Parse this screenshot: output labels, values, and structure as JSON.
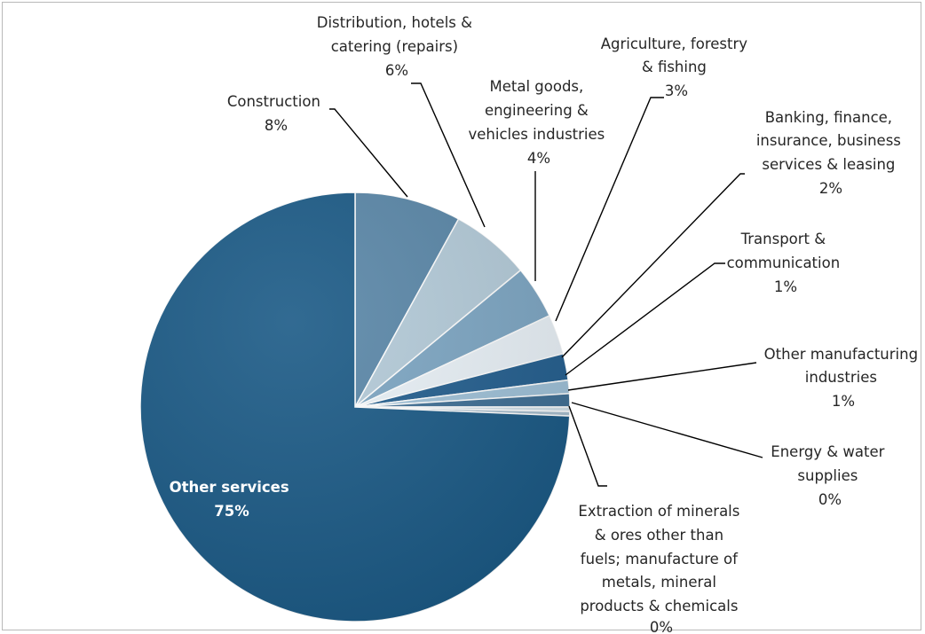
{
  "chart_data": {
    "type": "pie",
    "start_angle_deg": 0,
    "direction": "clockwise",
    "slices": [
      {
        "name": "Construction",
        "value": 8,
        "label": "8%",
        "color": "#5a87a8"
      },
      {
        "name": "Distribution, hotels & catering (repairs)",
        "value": 6,
        "label": "6%",
        "color": "#b4cbd9"
      },
      {
        "name": "Metal goods, engineering & vehicles industries",
        "value": 4,
        "label": "4%",
        "color": "#7da6c3"
      },
      {
        "name": "Agriculture, forestry & fishing",
        "value": 3,
        "label": "3%",
        "color": "#e9f1f7"
      },
      {
        "name": "Banking, finance, insurance, business services & leasing",
        "value": 2,
        "label": "2%",
        "color": "#245f8f"
      },
      {
        "name": "Transport & communication",
        "value": 1,
        "label": "1%",
        "color": "#9fc1d8"
      },
      {
        "name": "Other manufacturing industries",
        "value": 1,
        "label": "1%",
        "color": "#3f6f95"
      },
      {
        "name": "Energy & water supplies",
        "value": 0,
        "label": "0%",
        "color": "#d2e1ea"
      },
      {
        "name": "Extraction of minerals & ores other than fuels; manufacture of metals, mineral products & chemicals",
        "value": 0,
        "label": "0%",
        "color": "#a8bfcf"
      },
      {
        "name": "Other services",
        "value": 75,
        "label": "75%",
        "color": "#1b5a86"
      }
    ]
  },
  "labels": {
    "construction": [
      "Construction",
      "8%"
    ],
    "distribution": [
      "Distribution, hotels &",
      "catering (repairs)",
      "6%"
    ],
    "metal": [
      "Metal goods,",
      "engineering &",
      "vehicles industries",
      "4%"
    ],
    "agriculture": [
      "Agriculture, forestry",
      "& fishing",
      "3%"
    ],
    "banking": [
      "Banking, finance,",
      "insurance, business",
      "services & leasing",
      "2%"
    ],
    "transport": [
      "Transport &",
      "communication",
      "1%"
    ],
    "other_manufacturing": [
      "Other manufacturing",
      "industries",
      "1%"
    ],
    "energy": [
      "Energy & water",
      "supplies",
      "0%"
    ],
    "extraction": [
      "Extraction of minerals",
      "& ores other than",
      "fuels; manufacture of",
      "metals, mineral",
      "products & chemicals",
      "0%"
    ],
    "other_services": [
      "Other services",
      "75%"
    ]
  }
}
